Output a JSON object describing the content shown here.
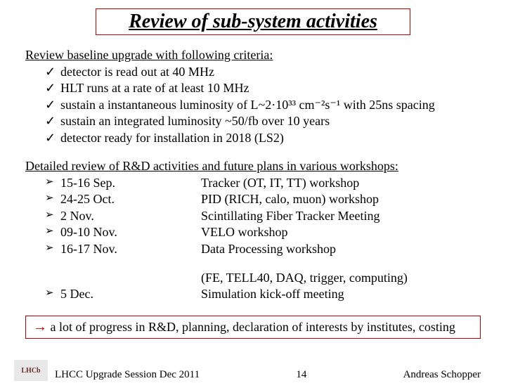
{
  "title": "Review of sub-system activities",
  "section1_head": "Review baseline upgrade with following criteria:",
  "criteria": [
    "detector is read out at 40 MHz",
    "HLT runs at a rate of at least 10 MHz",
    "sustain a instantaneous luminosity of L~2·10³³ cm⁻²s⁻¹ with 25ns spacing",
    "sustain an integrated luminosity ~50/fb over 10 years",
    "detector ready for installation in 2018 (LS2)"
  ],
  "section2_head": "Detailed review of R&D activities and future plans in various workshops:",
  "schedule": [
    {
      "date": "15-16 Sep.",
      "desc": "Tracker (OT, IT, TT) workshop"
    },
    {
      "date": "24-25 Oct.",
      "desc": "PID (RICH, calo, muon) workshop"
    },
    {
      "date": "2 Nov.",
      "desc": "Scintillating Fiber Tracker Meeting"
    },
    {
      "date": "09-10 Nov.",
      "desc": "VELO workshop"
    },
    {
      "date": "16-17 Nov.",
      "desc": "Data Processing workshop"
    }
  ],
  "schedule_sub": {
    "date": "",
    "desc": "(FE, TELL40, DAQ, trigger, computing)"
  },
  "schedule_last": {
    "date": "5 Dec.",
    "desc": "Simulation kick-off meeting"
  },
  "conclusion_arrow": "→",
  "conclusion": "  a lot of progress in R&D, planning, declaration of interests by institutes, costing",
  "footer_left": "LHCC Upgrade Session Dec 2011",
  "footer_center": "14",
  "footer_right": "Andreas Schopper",
  "logo_text": "LHCb",
  "colors": {
    "border": "#c00000",
    "bg": "#ffffff",
    "text": "#000000"
  }
}
